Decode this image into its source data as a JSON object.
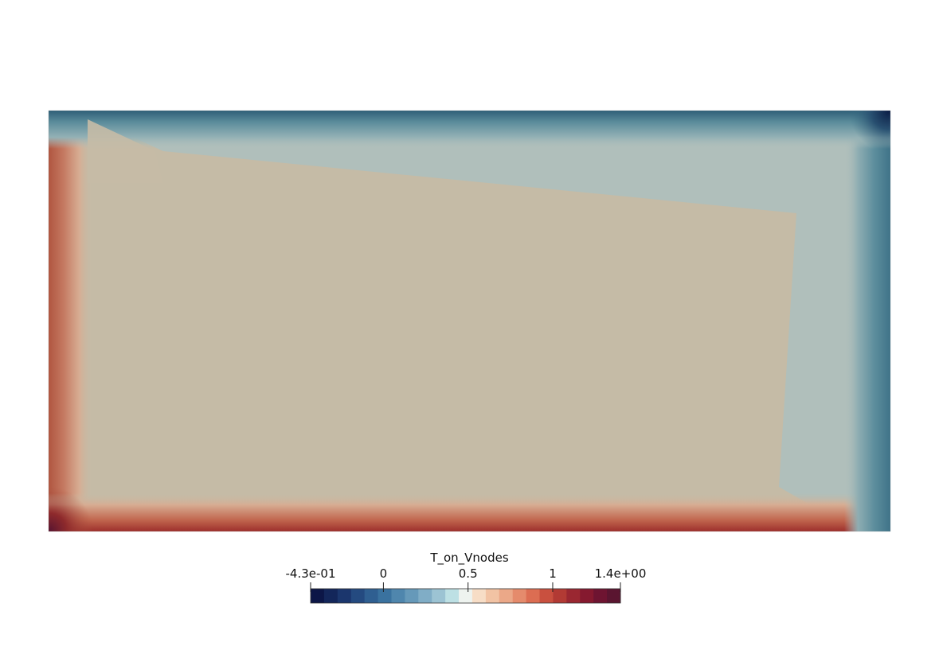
{
  "scalar_bar": {
    "title": "T_on_Vnodes",
    "ticks": [
      {
        "label": "-4.3e-01",
        "value": -0.43
      },
      {
        "label": "0",
        "value": 0
      },
      {
        "label": "0.5",
        "value": 0.5
      },
      {
        "label": "1",
        "value": 1
      },
      {
        "label": "1.4e+00",
        "value": 1.4
      }
    ],
    "range": [
      -0.43,
      1.4
    ],
    "colormap": "blue-white-red diverging (discrete bands)"
  },
  "colors": {
    "background": "#ffffff",
    "interior_warm": "#c5bba6",
    "interior_cool": "#b0bfbb",
    "edge_hot": "#b25a43",
    "edge_cold": "#4e7f91",
    "corner_hot": "#5a1530",
    "corner_cold": "#0c1f47"
  }
}
